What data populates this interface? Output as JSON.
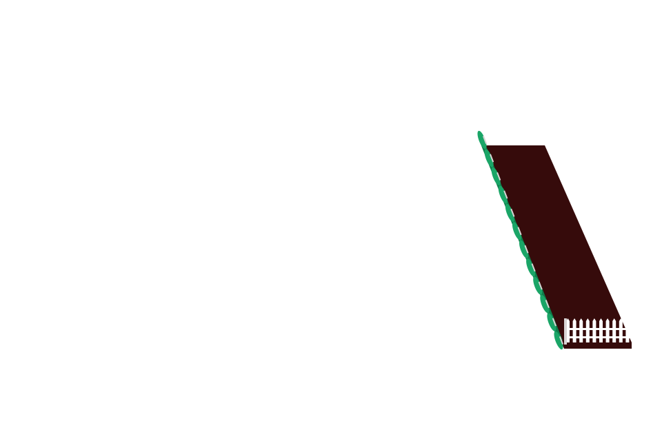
{
  "scene": {
    "background_color": "#ffffff",
    "garden_bed": {
      "soil_color": "#360b0b",
      "hedge_color": "#1aa567",
      "hedge_dark_color": "#0e7d4b",
      "fence_color": "#ffffff",
      "fence_shadow_color": "#d8d4d4"
    }
  }
}
